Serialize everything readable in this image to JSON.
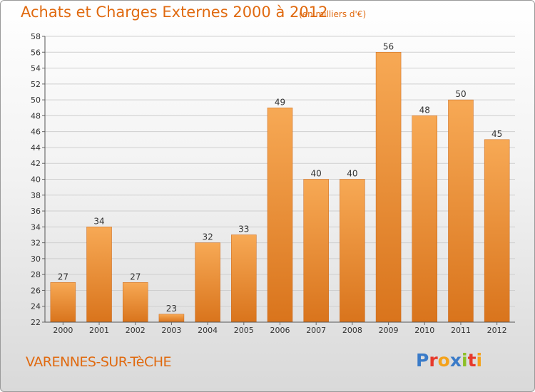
{
  "header": {
    "title": "Achats et Charges Externes 2000 à 2012",
    "subtitle": "(en milliers d'€)"
  },
  "footer": {
    "commune": "VARENNES-SUR-TèCHE"
  },
  "logo": {
    "text": "Proxiti",
    "letters": [
      {
        "ch": "P",
        "color": "#3a7bc8"
      },
      {
        "ch": "r",
        "color": "#e7392b"
      },
      {
        "ch": "o",
        "color": "#f4a21b"
      },
      {
        "ch": "x",
        "color": "#3a7bc8"
      },
      {
        "ch": "i",
        "color": "#8cbf26"
      },
      {
        "ch": "t",
        "color": "#e7392b"
      },
      {
        "ch": "i",
        "color": "#f4a21b"
      }
    ]
  },
  "chart_data": {
    "type": "bar",
    "title": "Achats et Charges Externes 2000 à 2012",
    "subtitle": "(en milliers d'€)",
    "categories": [
      "2000",
      "2001",
      "2002",
      "2003",
      "2004",
      "2005",
      "2006",
      "2007",
      "2008",
      "2009",
      "2010",
      "2011",
      "2012"
    ],
    "values": [
      27,
      34,
      27,
      23,
      32,
      33,
      49,
      40,
      40,
      56,
      48,
      50,
      45
    ],
    "ylim": [
      22,
      58
    ],
    "yticks": [
      22,
      24,
      26,
      28,
      30,
      32,
      34,
      36,
      38,
      40,
      42,
      44,
      46,
      48,
      50,
      52,
      54,
      56,
      58
    ],
    "grid": true,
    "xlabel": "",
    "ylabel": "",
    "colors": {
      "bar_light": "#f7a955",
      "bar_dark": "#d9741c",
      "text": "#333333",
      "grid": "#cfcfcf"
    }
  }
}
